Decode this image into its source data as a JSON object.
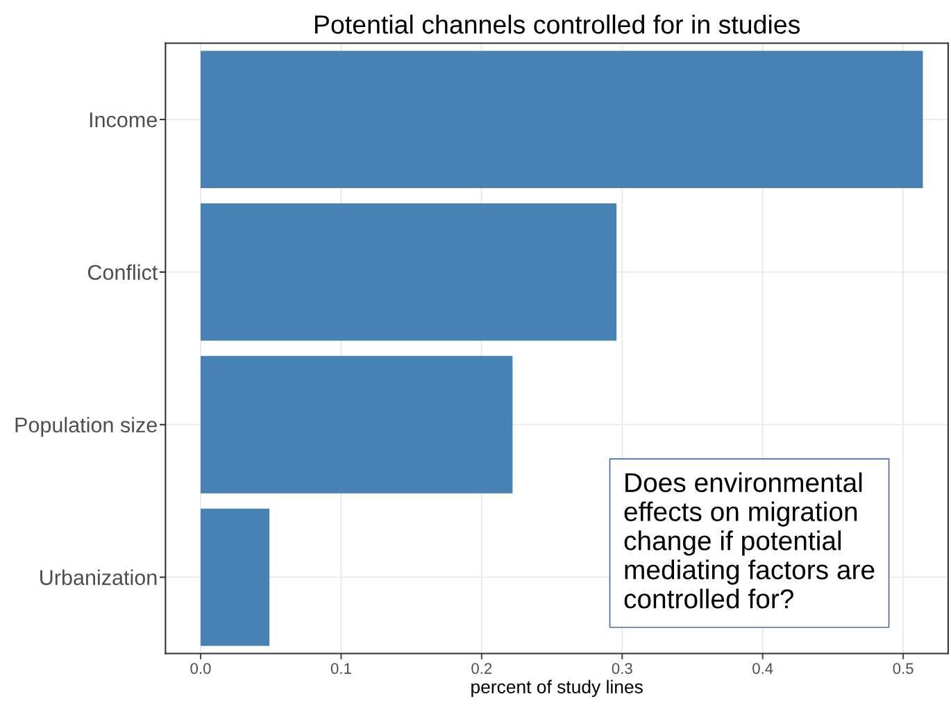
{
  "chart_data": {
    "type": "bar",
    "orientation": "horizontal",
    "title": "Potential channels controlled for in studies",
    "xlabel": "percent of study lines",
    "categories": [
      "Income",
      "Conflict",
      "Population size",
      "Urbanization"
    ],
    "values": [
      0.514,
      0.296,
      0.222,
      0.049
    ],
    "color": "#4682b4",
    "xlim": [
      -0.025,
      0.532
    ],
    "xticks": [
      {
        "value": 0,
        "label": "0.0"
      },
      0.1,
      0.2,
      0.3,
      0.4,
      0.5
    ],
    "grid": true,
    "annotations": [
      "Does environmental\neffects on migration\nchange if potential\nmediating factors are\ncontrolled for?"
    ]
  }
}
